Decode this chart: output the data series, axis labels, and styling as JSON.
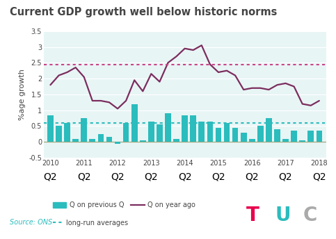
{
  "title": "Current GDP growth well below historic norms",
  "ylabel": "%age growth",
  "source": "Source: ONS",
  "ylim": [
    -0.5,
    3.5
  ],
  "long_run_avg_line": 2.45,
  "long_run_avg_bar": 0.6,
  "bar_color": "#2BBCBD",
  "line_color": "#7B2D5E",
  "dotted_line_color": "#CC4488",
  "dotted_bar_color": "#2BBCBD",
  "bg_color": "#E8F5F5",
  "fig_bg_color": "#FFFFFF",
  "title_color": "#444444",
  "bar_values": [
    0.85,
    0.5,
    0.6,
    0.1,
    0.75,
    0.1,
    0.25,
    0.15,
    -0.05,
    0.6,
    1.2,
    0.05,
    0.65,
    0.55,
    0.9,
    0.1,
    0.85,
    0.85,
    0.65,
    0.65,
    0.45,
    0.6,
    0.45,
    0.3,
    0.1,
    0.5,
    0.75,
    0.4,
    0.1,
    0.35,
    0.05,
    0.35,
    0.35
  ],
  "line_values": [
    1.8,
    2.1,
    2.2,
    2.35,
    2.05,
    1.3,
    1.3,
    1.25,
    1.05,
    1.3,
    1.95,
    1.6,
    2.15,
    1.9,
    2.5,
    2.7,
    2.95,
    2.9,
    3.05,
    2.45,
    2.2,
    2.25,
    2.1,
    1.65,
    1.7,
    1.7,
    1.65,
    1.8,
    1.85,
    1.75,
    1.2,
    1.15,
    1.3
  ],
  "x_year_labels": [
    "2010",
    "2011",
    "2012",
    "2013",
    "2014",
    "2015",
    "2016",
    "2017",
    "2018"
  ],
  "x_year_positions": [
    0,
    4,
    8,
    12,
    16,
    20,
    24,
    28,
    32
  ],
  "tuc_T_color": "#E8004D",
  "tuc_U_color": "#2BBCBD",
  "tuc_C_color": "#AAAAAA"
}
